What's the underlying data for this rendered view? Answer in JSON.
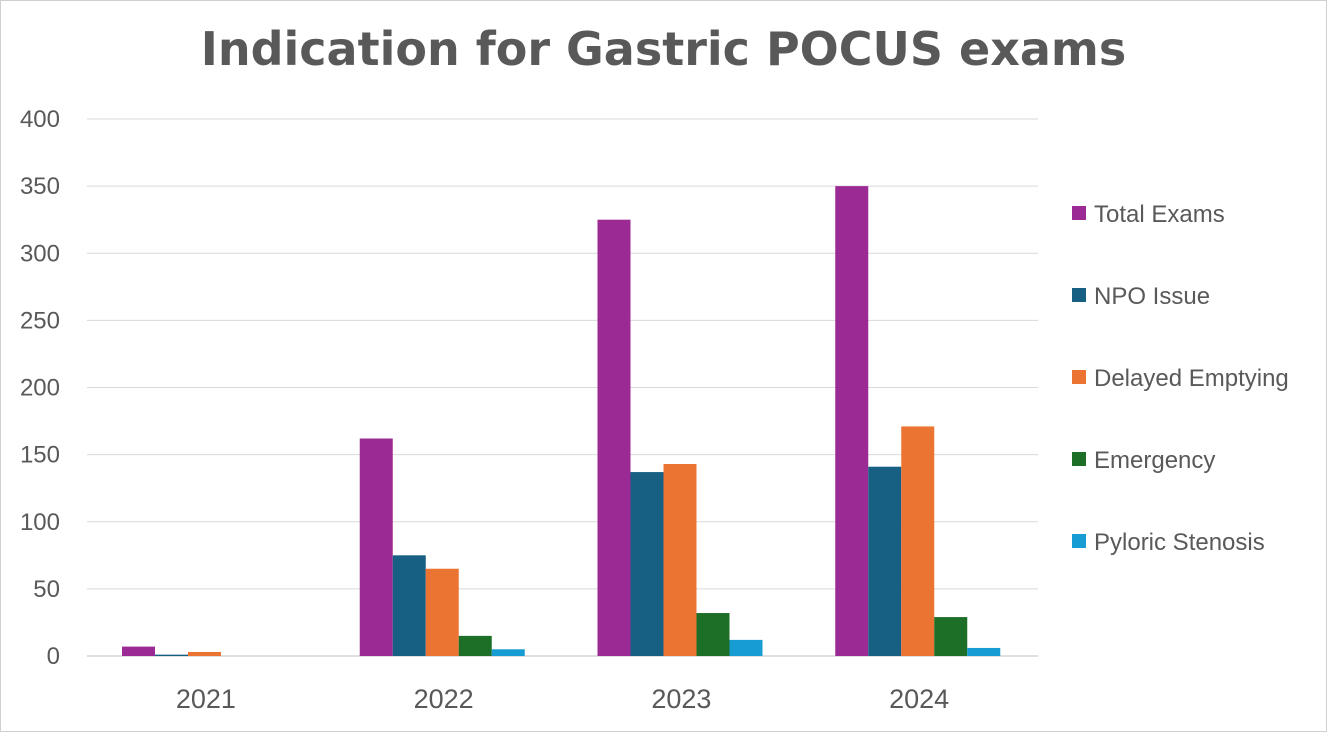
{
  "chart_data": {
    "type": "bar",
    "title": "Indication for Gastric POCUS exams",
    "xlabel": "",
    "ylabel": "",
    "categories": [
      "2021",
      "2022",
      "2023",
      "2024"
    ],
    "ylim": [
      0,
      400
    ],
    "yticks": [
      "0",
      "50",
      "100",
      "150",
      "200",
      "250",
      "300",
      "350",
      "400"
    ],
    "grid": true,
    "legend_position": "right",
    "series": [
      {
        "name": "Total Exams",
        "color": "#9C2A94",
        "values": [
          7,
          162,
          325,
          350
        ]
      },
      {
        "name": "NPO Issue",
        "color": "#176083",
        "values": [
          1,
          75,
          137,
          141
        ]
      },
      {
        "name": "Delayed Emptying",
        "color": "#EB7433",
        "values": [
          3,
          65,
          143,
          171
        ]
      },
      {
        "name": "Emergency",
        "color": "#1D6E26",
        "values": [
          0,
          15,
          32,
          29
        ]
      },
      {
        "name": "Pyloric Stenosis",
        "color": "#179CD3",
        "values": [
          0,
          5,
          12,
          6
        ]
      }
    ]
  }
}
